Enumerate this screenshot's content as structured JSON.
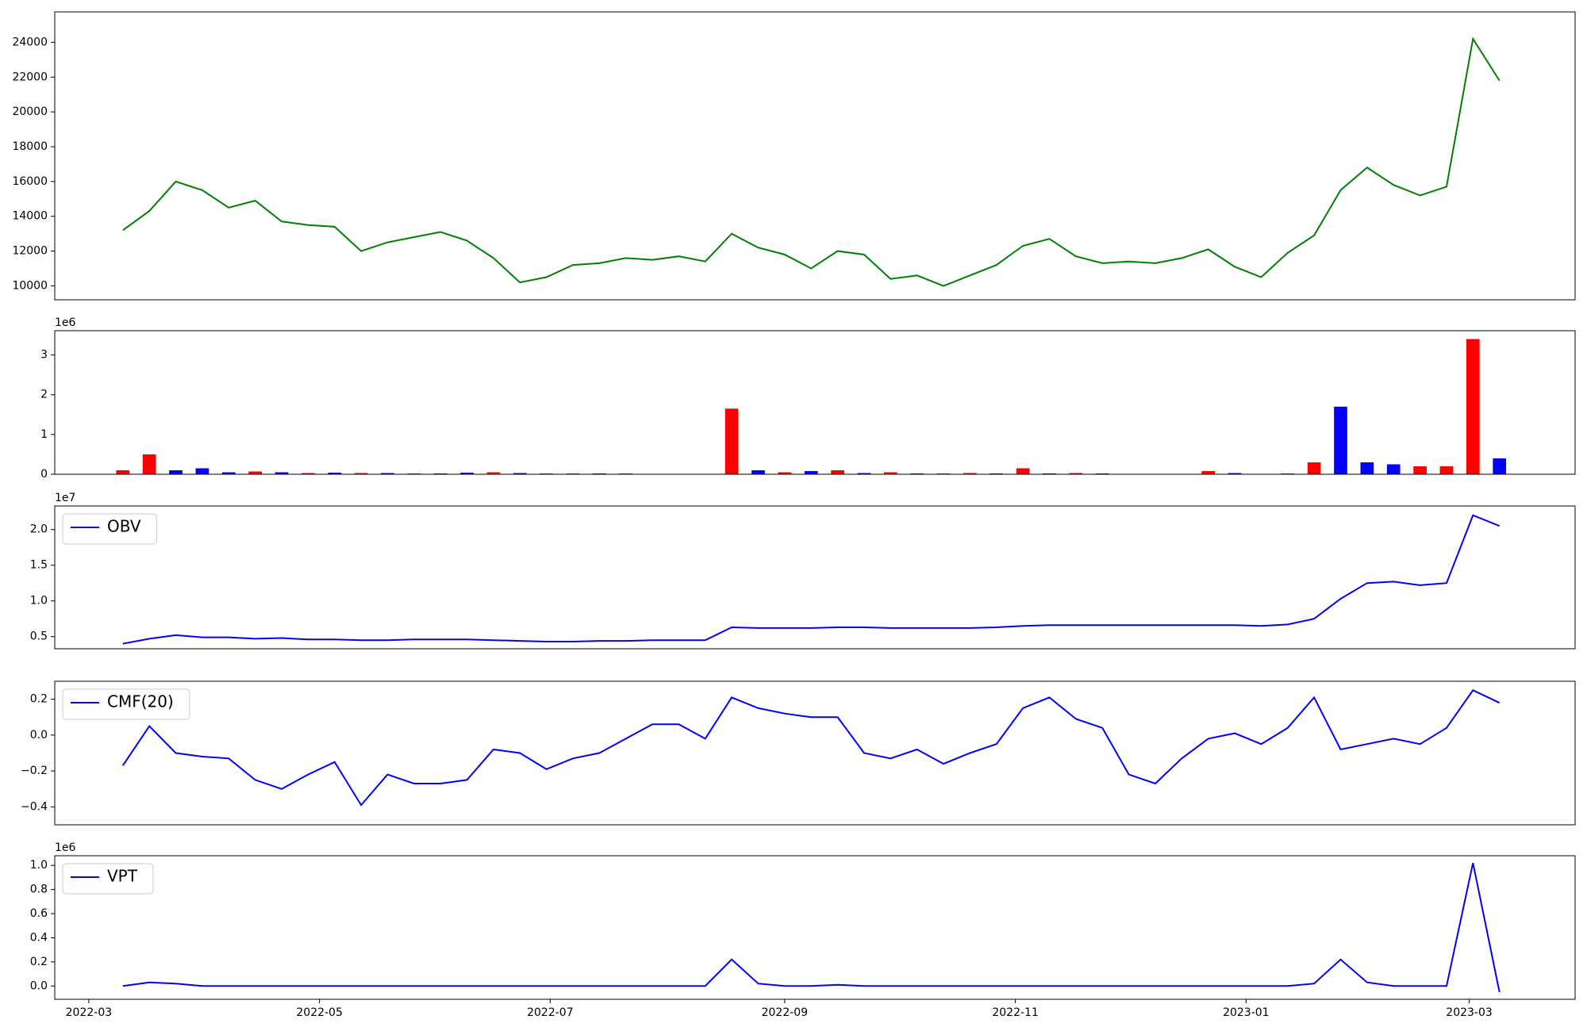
{
  "chart_data": [
    {
      "type": "line",
      "x": [
        "2022-03-10",
        "2022-03-17",
        "2022-03-24",
        "2022-03-31",
        "2022-04-07",
        "2022-04-14",
        "2022-04-21",
        "2022-04-28",
        "2022-05-05",
        "2022-05-12",
        "2022-05-19",
        "2022-05-26",
        "2022-06-02",
        "2022-06-09",
        "2022-06-16",
        "2022-06-23",
        "2022-06-30",
        "2022-07-07",
        "2022-07-14",
        "2022-07-21",
        "2022-07-28",
        "2022-08-04",
        "2022-08-11",
        "2022-08-18",
        "2022-08-25",
        "2022-09-01",
        "2022-09-08",
        "2022-09-15",
        "2022-09-22",
        "2022-09-29",
        "2022-10-06",
        "2022-10-13",
        "2022-10-20",
        "2022-10-27",
        "2022-11-03",
        "2022-11-10",
        "2022-11-17",
        "2022-11-24",
        "2022-12-01",
        "2022-12-08",
        "2022-12-15",
        "2022-12-22",
        "2022-12-29",
        "2023-01-05",
        "2023-01-12",
        "2023-01-19",
        "2023-01-26",
        "2023-02-02",
        "2023-02-09",
        "2023-02-16",
        "2023-02-23",
        "2023-03-02",
        "2023-03-09"
      ],
      "xlim": [
        "2022-02-20",
        "2023-03-29"
      ],
      "ylim": [
        9200,
        25750
      ],
      "yticks": [
        10000,
        12000,
        14000,
        16000,
        18000,
        20000,
        22000,
        24000
      ],
      "series": [
        {
          "color": "#008000",
          "values": [
            13200,
            14300,
            16000,
            15500,
            14500,
            14900,
            13700,
            13500,
            13400,
            12000,
            12500,
            12800,
            13100,
            12600,
            11600,
            10200,
            10500,
            11200,
            11300,
            11600,
            11500,
            11700,
            11400,
            13000,
            12200,
            11800,
            11000,
            12000,
            11800,
            10400,
            10600,
            10000,
            10600,
            11200,
            12300,
            12700,
            11700,
            11300,
            11400,
            11300,
            11600,
            12100,
            11100,
            10500,
            11900,
            12900,
            15500,
            16800,
            15800,
            15200,
            15700,
            24200,
            21800
          ]
        }
      ]
    },
    {
      "type": "bar",
      "x": [
        "2022-03-10",
        "2022-03-17",
        "2022-03-24",
        "2022-03-31",
        "2022-04-07",
        "2022-04-14",
        "2022-04-21",
        "2022-04-28",
        "2022-05-05",
        "2022-05-12",
        "2022-05-19",
        "2022-05-26",
        "2022-06-02",
        "2022-06-09",
        "2022-06-16",
        "2022-06-23",
        "2022-06-30",
        "2022-07-07",
        "2022-07-14",
        "2022-07-21",
        "2022-07-28",
        "2022-08-04",
        "2022-08-11",
        "2022-08-18",
        "2022-08-25",
        "2022-09-01",
        "2022-09-08",
        "2022-09-15",
        "2022-09-22",
        "2022-09-29",
        "2022-10-06",
        "2022-10-13",
        "2022-10-20",
        "2022-10-27",
        "2022-11-03",
        "2022-11-10",
        "2022-11-17",
        "2022-11-24",
        "2022-12-01",
        "2022-12-08",
        "2022-12-15",
        "2022-12-22",
        "2022-12-29",
        "2023-01-05",
        "2023-01-12",
        "2023-01-19",
        "2023-01-26",
        "2023-02-02",
        "2023-02-09",
        "2023-02-16",
        "2023-02-23",
        "2023-03-02",
        "2023-03-09"
      ],
      "xlim": [
        "2022-02-20",
        "2023-03-29"
      ],
      "ylim": [
        0,
        3610000
      ],
      "offset_label": "1e6",
      "yticks": [
        {
          "value": 0,
          "label": "0"
        },
        {
          "value": 1000000,
          "label": "1"
        },
        {
          "value": 2000000,
          "label": "2"
        },
        {
          "value": 3000000,
          "label": "3"
        }
      ],
      "series": [
        {
          "values": [
            100000,
            500000,
            100000,
            150000,
            50000,
            70000,
            50000,
            30000,
            40000,
            30000,
            30000,
            20000,
            20000,
            40000,
            50000,
            30000,
            20000,
            20000,
            20000,
            20000,
            10000,
            10000,
            10000,
            1650000,
            100000,
            50000,
            80000,
            100000,
            30000,
            50000,
            20000,
            20000,
            30000,
            20000,
            150000,
            20000,
            30000,
            20000,
            10000,
            10000,
            10000,
            80000,
            30000,
            10000,
            20000,
            300000,
            1700000,
            300000,
            250000,
            200000,
            200000,
            3400000,
            400000
          ],
          "colors": [
            "#ff0000",
            "#ff0000",
            "#0000ff",
            "#0000ff",
            "#0000ff",
            "#ff0000",
            "#0000ff",
            "#ff0000",
            "#0000ff",
            "#ff0000",
            "#0000ff",
            "#ff0000",
            "#0000ff",
            "#0000ff",
            "#ff0000",
            "#0000ff",
            "#ff0000",
            "#ff0000",
            "#0000ff",
            "#ff0000",
            "#0000ff",
            "#ff0000",
            "#0000ff",
            "#ff0000",
            "#0000ff",
            "#ff0000",
            "#0000ff",
            "#ff0000",
            "#0000ff",
            "#ff0000",
            "#0000ff",
            "#ff0000",
            "#ff0000",
            "#0000ff",
            "#ff0000",
            "#0000ff",
            "#ff0000",
            "#0000ff",
            "#ff0000",
            "#0000ff",
            "#ff0000",
            "#ff0000",
            "#0000ff",
            "#0000ff",
            "#ff0000",
            "#ff0000",
            "#0000ff",
            "#0000ff",
            "#0000ff",
            "#ff0000",
            "#ff0000",
            "#ff0000",
            "#0000ff"
          ]
        }
      ]
    },
    {
      "type": "line",
      "x": [
        "2022-03-10",
        "2022-03-17",
        "2022-03-24",
        "2022-03-31",
        "2022-04-07",
        "2022-04-14",
        "2022-04-21",
        "2022-04-28",
        "2022-05-05",
        "2022-05-12",
        "2022-05-19",
        "2022-05-26",
        "2022-06-02",
        "2022-06-09",
        "2022-06-16",
        "2022-06-23",
        "2022-06-30",
        "2022-07-07",
        "2022-07-14",
        "2022-07-21",
        "2022-07-28",
        "2022-08-04",
        "2022-08-11",
        "2022-08-18",
        "2022-08-25",
        "2022-09-01",
        "2022-09-08",
        "2022-09-15",
        "2022-09-22",
        "2022-09-29",
        "2022-10-06",
        "2022-10-13",
        "2022-10-20",
        "2022-10-27",
        "2022-11-03",
        "2022-11-10",
        "2022-11-17",
        "2022-11-24",
        "2022-12-01",
        "2022-12-08",
        "2022-12-15",
        "2022-12-22",
        "2022-12-29",
        "2023-01-05",
        "2023-01-12",
        "2023-01-19",
        "2023-01-26",
        "2023-02-02",
        "2023-02-09",
        "2023-02-16",
        "2023-02-23",
        "2023-03-02",
        "2023-03-09"
      ],
      "xlim": [
        "2022-02-20",
        "2023-03-29"
      ],
      "ylim": [
        3300000,
        23300000
      ],
      "offset_label": "1e7",
      "yticks": [
        {
          "value": 5000000,
          "label": "0.5"
        },
        {
          "value": 10000000,
          "label": "1.0"
        },
        {
          "value": 15000000,
          "label": "1.5"
        },
        {
          "value": 20000000,
          "label": "2.0"
        }
      ],
      "legend": "upper left",
      "series": [
        {
          "name": "OBV",
          "color": "#0000ff",
          "values": [
            4000000,
            4700000,
            5200000,
            4900000,
            4900000,
            4700000,
            4800000,
            4600000,
            4600000,
            4500000,
            4500000,
            4600000,
            4600000,
            4600000,
            4500000,
            4400000,
            4300000,
            4300000,
            4400000,
            4400000,
            4500000,
            4500000,
            4500000,
            6300000,
            6200000,
            6200000,
            6200000,
            6300000,
            6300000,
            6200000,
            6200000,
            6200000,
            6200000,
            6300000,
            6500000,
            6600000,
            6600000,
            6600000,
            6600000,
            6600000,
            6600000,
            6600000,
            6600000,
            6500000,
            6700000,
            7500000,
            10300000,
            12500000,
            12700000,
            12200000,
            12500000,
            22000000,
            20500000
          ]
        }
      ]
    },
    {
      "type": "line",
      "x": [
        "2022-03-10",
        "2022-03-17",
        "2022-03-24",
        "2022-03-31",
        "2022-04-07",
        "2022-04-14",
        "2022-04-21",
        "2022-04-28",
        "2022-05-05",
        "2022-05-12",
        "2022-05-19",
        "2022-05-26",
        "2022-06-02",
        "2022-06-09",
        "2022-06-16",
        "2022-06-23",
        "2022-06-30",
        "2022-07-07",
        "2022-07-14",
        "2022-07-21",
        "2022-07-28",
        "2022-08-04",
        "2022-08-11",
        "2022-08-18",
        "2022-08-25",
        "2022-09-01",
        "2022-09-08",
        "2022-09-15",
        "2022-09-22",
        "2022-09-29",
        "2022-10-06",
        "2022-10-13",
        "2022-10-20",
        "2022-10-27",
        "2022-11-03",
        "2022-11-10",
        "2022-11-17",
        "2022-11-24",
        "2022-12-01",
        "2022-12-08",
        "2022-12-15",
        "2022-12-22",
        "2022-12-29",
        "2023-01-05",
        "2023-01-12",
        "2023-01-19",
        "2023-01-26",
        "2023-02-02",
        "2023-02-09",
        "2023-02-16",
        "2023-02-23",
        "2023-03-02",
        "2023-03-09"
      ],
      "xlim": [
        "2022-02-20",
        "2023-03-29"
      ],
      "ylim": [
        -0.5,
        0.3
      ],
      "yticks": [
        {
          "value": -0.4,
          "label": "−0.4"
        },
        {
          "value": -0.2,
          "label": "−0.2"
        },
        {
          "value": 0,
          "label": "0.0"
        },
        0.2
      ],
      "legend": "upper left",
      "series": [
        {
          "name": "CMF(20)",
          "color": "#0000ff",
          "values": [
            -0.17,
            0.05,
            -0.1,
            -0.12,
            -0.13,
            -0.25,
            -0.3,
            -0.22,
            -0.15,
            -0.39,
            -0.22,
            -0.27,
            -0.27,
            -0.25,
            -0.08,
            -0.1,
            -0.19,
            -0.13,
            -0.1,
            -0.02,
            0.06,
            0.06,
            -0.02,
            0.21,
            0.15,
            0.12,
            0.1,
            0.1,
            -0.1,
            -0.13,
            -0.08,
            -0.16,
            -0.1,
            -0.05,
            0.15,
            0.21,
            0.09,
            0.04,
            -0.22,
            -0.27,
            -0.13,
            -0.02,
            0.01,
            -0.05,
            0.04,
            0.21,
            -0.08,
            -0.05,
            -0.02,
            -0.05,
            0.04,
            0.25,
            0.18
          ]
        }
      ]
    },
    {
      "type": "line",
      "x": [
        "2022-03-10",
        "2022-03-17",
        "2022-03-24",
        "2022-03-31",
        "2022-04-07",
        "2022-04-14",
        "2022-04-21",
        "2022-04-28",
        "2022-05-05",
        "2022-05-12",
        "2022-05-19",
        "2022-05-26",
        "2022-06-02",
        "2022-06-09",
        "2022-06-16",
        "2022-06-23",
        "2022-06-30",
        "2022-07-07",
        "2022-07-14",
        "2022-07-21",
        "2022-07-28",
        "2022-08-04",
        "2022-08-11",
        "2022-08-18",
        "2022-08-25",
        "2022-09-01",
        "2022-09-08",
        "2022-09-15",
        "2022-09-22",
        "2022-09-29",
        "2022-10-06",
        "2022-10-13",
        "2022-10-20",
        "2022-10-27",
        "2022-11-03",
        "2022-11-10",
        "2022-11-17",
        "2022-11-24",
        "2022-12-01",
        "2022-12-08",
        "2022-12-15",
        "2022-12-22",
        "2022-12-29",
        "2023-01-05",
        "2023-01-12",
        "2023-01-19",
        "2023-01-26",
        "2023-02-02",
        "2023-02-09",
        "2023-02-16",
        "2023-02-23",
        "2023-03-02",
        "2023-03-09"
      ],
      "xlim": [
        "2022-02-20",
        "2023-03-29"
      ],
      "ylim": [
        -110000,
        1080000
      ],
      "offset_label": "1e6",
      "yticks": [
        {
          "value": 0,
          "label": "0.0"
        },
        {
          "value": 200000,
          "label": "0.2"
        },
        {
          "value": 400000,
          "label": "0.4"
        },
        {
          "value": 600000,
          "label": "0.6"
        },
        {
          "value": 800000,
          "label": "0.8"
        },
        {
          "value": 1000000,
          "label": "1.0"
        }
      ],
      "xticks": [
        {
          "value": "2022-03-01",
          "label": "2022-03"
        },
        {
          "value": "2022-05-01",
          "label": "2022-05"
        },
        {
          "value": "2022-07-01",
          "label": "2022-07"
        },
        {
          "value": "2022-09-01",
          "label": "2022-09"
        },
        {
          "value": "2022-11-01",
          "label": "2022-11"
        },
        {
          "value": "2023-01-01",
          "label": "2023-01"
        },
        {
          "value": "2023-03-01",
          "label": "2023-03"
        }
      ],
      "legend": "upper left",
      "series": [
        {
          "name": "VPT",
          "color": "#0000ff",
          "values": [
            0,
            30000,
            20000,
            0,
            0,
            0,
            0,
            0,
            0,
            0,
            0,
            0,
            0,
            0,
            0,
            0,
            0,
            0,
            0,
            0,
            0,
            0,
            0,
            220000,
            20000,
            0,
            0,
            10000,
            0,
            0,
            0,
            0,
            0,
            0,
            0,
            0,
            0,
            0,
            0,
            0,
            0,
            0,
            0,
            0,
            0,
            20000,
            220000,
            30000,
            0,
            0,
            0,
            1020000,
            -50000
          ]
        }
      ]
    }
  ]
}
